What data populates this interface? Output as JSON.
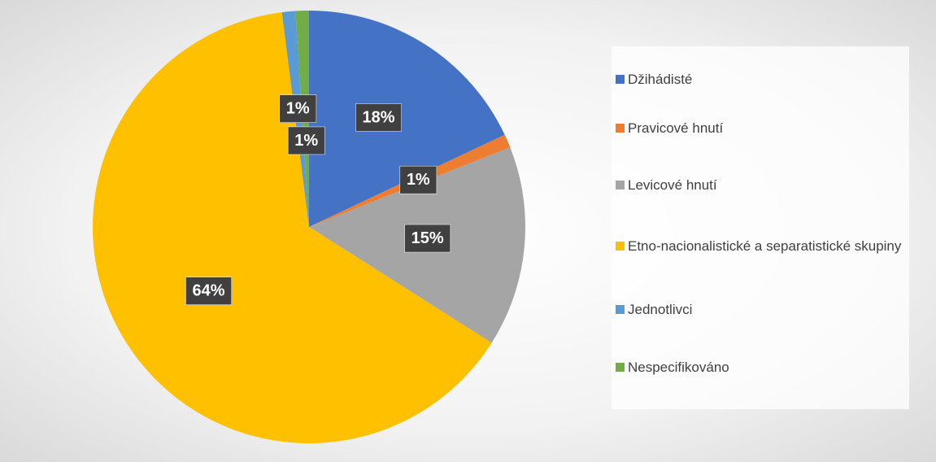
{
  "chart_data": {
    "type": "pie",
    "categories": [
      "Džihádisté",
      "Pravicové hnutí",
      "Levicové hnutí",
      "Etno-nacionalistické a separatistické skupiny",
      "Jednotlivci",
      "Nespecifikováno"
    ],
    "values": [
      18,
      1,
      15,
      64,
      1,
      1
    ],
    "value_labels": [
      "18%",
      "1%",
      "15%",
      "64%",
      "1%",
      "1%"
    ],
    "colors": [
      "#4472c4",
      "#ed7d31",
      "#a5a5a5",
      "#ffc000",
      "#5b9bd5",
      "#70ad47"
    ],
    "legend": "right"
  }
}
